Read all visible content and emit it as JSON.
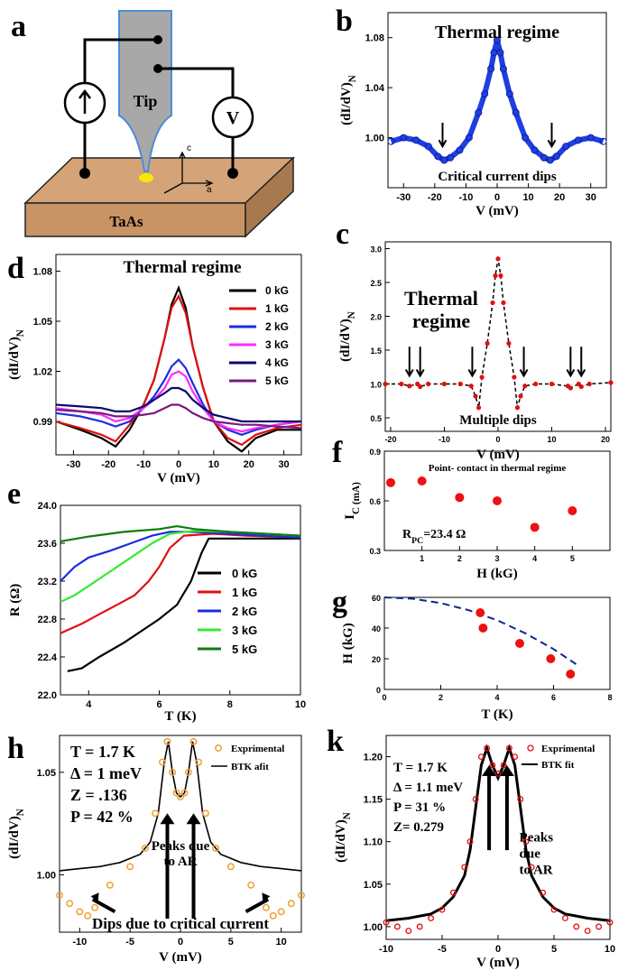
{
  "panel_labels": {
    "a": "a",
    "b": "b",
    "c": "c",
    "d": "d",
    "e": "e",
    "f": "f",
    "g": "g",
    "h": "h",
    "k": "k"
  },
  "schematic": {
    "tip_label": "Tip",
    "meter_label": "V",
    "substrate_label": "TaAs",
    "axis_c": "c",
    "axis_a": "a"
  },
  "colors": {
    "b": "#1f3fe0",
    "c": "#e01010",
    "fit": "#0a2a8a"
  },
  "chart_data": [
    {
      "id": "b",
      "type": "line",
      "title": "Thermal regime",
      "annotation": "Critical current dips",
      "xlabel": "V (mV)",
      "ylabel": "(dI/dV)_N",
      "xlim": [
        -35,
        35
      ],
      "ylim": [
        0.96,
        1.1
      ],
      "xticks": [
        -30,
        -20,
        -10,
        0,
        10,
        20,
        30
      ],
      "yticks": [
        1.0,
        1.04,
        1.08
      ],
      "ytick_labels": [
        "1.00",
        "1.04",
        "1.08"
      ],
      "dip_arrows_x": [
        -17.5,
        17.5
      ],
      "x": [
        -34,
        -30,
        -26,
        -22,
        -19,
        -17,
        -15,
        -12,
        -9,
        -6,
        -4,
        -2,
        -1,
        0,
        1,
        2,
        4,
        6,
        9,
        12,
        15,
        17,
        19,
        22,
        26,
        30,
        34
      ],
      "y": [
        0.997,
        1.0,
        0.998,
        0.993,
        0.985,
        0.982,
        0.984,
        0.99,
        1.0,
        1.02,
        1.035,
        1.055,
        1.068,
        1.078,
        1.068,
        1.055,
        1.035,
        1.02,
        1.0,
        0.99,
        0.984,
        0.982,
        0.985,
        0.993,
        0.998,
        1.0,
        0.997
      ]
    },
    {
      "id": "c",
      "type": "line",
      "title_line1": "Thermal",
      "title_line2": "regime",
      "annotation": "Multiple dips",
      "xlabel": "V (mV)",
      "ylabel": "(dI/dV)_N",
      "xlim": [
        -21,
        21
      ],
      "ylim": [
        0.3,
        3.1
      ],
      "xticks": [
        -20,
        -10,
        0,
        10,
        20
      ],
      "yticks": [
        0.5,
        1.0,
        1.5,
        2.0,
        2.5,
        3.0
      ],
      "ytick_labels": [
        "0.5",
        "1.0",
        "1.5",
        "2.0",
        "2.5",
        "3.0"
      ],
      "dip_arrows_x": [
        -16.5,
        -14.5,
        -4.8,
        4.8,
        13.5,
        15.5
      ],
      "x": [
        -21,
        -18,
        -16.5,
        -15,
        -14.5,
        -13,
        -10,
        -7,
        -5,
        -4.2,
        -3.6,
        -3,
        -2,
        -1,
        -0.5,
        0,
        0.5,
        1,
        2,
        3,
        3.6,
        4.2,
        5,
        7,
        10,
        13,
        13.5,
        15,
        15.5,
        17,
        21
      ],
      "y": [
        1.0,
        1.0,
        0.97,
        1.0,
        0.96,
        1.0,
        1.0,
        1.0,
        0.97,
        0.82,
        0.65,
        1.1,
        1.6,
        2.2,
        2.6,
        2.85,
        2.6,
        2.2,
        1.6,
        1.1,
        0.65,
        0.82,
        0.97,
        1.0,
        1.0,
        0.97,
        0.94,
        1.0,
        0.96,
        1.0,
        1.02
      ]
    },
    {
      "id": "d",
      "type": "line",
      "title": "Thermal regime",
      "xlabel": "V (mV)",
      "ylabel": "(dI/dV)_N",
      "xlim": [
        -35,
        35
      ],
      "ylim": [
        0.97,
        1.09
      ],
      "xticks": [
        -30,
        -20,
        -10,
        0,
        10,
        20,
        30
      ],
      "yticks": [
        0.99,
        1.02,
        1.05,
        1.08
      ],
      "ytick_labels": [
        "0.99",
        "1.02",
        "1.05",
        "1.08"
      ],
      "x": [
        -35,
        -28,
        -22,
        -18,
        -14,
        -10,
        -7,
        -4,
        -2,
        0,
        2,
        4,
        7,
        10,
        14,
        18,
        22,
        28,
        35
      ],
      "series": [
        {
          "name": "0 kG",
          "color": "#000000",
          "values": [
            0.99,
            0.985,
            0.98,
            0.975,
            0.985,
            1.0,
            1.015,
            1.04,
            1.06,
            1.07,
            1.058,
            1.035,
            1.01,
            0.99,
            0.978,
            0.972,
            0.98,
            0.985,
            0.985
          ]
        },
        {
          "name": "1 kG",
          "color": "#e01010",
          "values": [
            0.99,
            0.986,
            0.982,
            0.978,
            0.988,
            1.0,
            1.015,
            1.04,
            1.058,
            1.065,
            1.055,
            1.035,
            1.01,
            0.99,
            0.98,
            0.976,
            0.982,
            0.986,
            0.988
          ]
        },
        {
          "name": "2 kG",
          "color": "#1a2de0",
          "values": [
            0.995,
            0.993,
            0.99,
            0.987,
            0.99,
            0.998,
            1.005,
            1.015,
            1.023,
            1.027,
            1.022,
            1.013,
            1.0,
            0.99,
            0.985,
            0.982,
            0.985,
            0.988,
            0.99
          ]
        },
        {
          "name": "3 kG",
          "color": "#ff2bff",
          "values": [
            0.998,
            0.996,
            0.994,
            0.99,
            0.992,
            0.998,
            1.003,
            1.01,
            1.018,
            1.02,
            1.017,
            1.008,
            0.998,
            0.99,
            0.986,
            0.984,
            0.986,
            0.988,
            0.99
          ]
        },
        {
          "name": "4 kG",
          "color": "#0a0a6e",
          "values": [
            1.0,
            0.999,
            0.998,
            0.996,
            0.996,
            0.999,
            1.003,
            1.007,
            1.01,
            1.01,
            1.008,
            1.003,
            0.998,
            0.994,
            0.992,
            0.99,
            0.99,
            0.99,
            0.99
          ]
        },
        {
          "name": "5 kG",
          "color": "#7a1a7a",
          "values": [
            0.997,
            0.996,
            0.995,
            0.993,
            0.993,
            0.994,
            0.995,
            0.998,
            1.0,
            1.0,
            0.998,
            0.995,
            0.992,
            0.99,
            0.989,
            0.988,
            0.988,
            0.987,
            0.986
          ]
        }
      ]
    },
    {
      "id": "e",
      "type": "line",
      "xlabel": "T (K)",
      "ylabel": "R (Ω)",
      "xlim": [
        3.2,
        10
      ],
      "ylim": [
        22.0,
        24.0
      ],
      "xticks": [
        4,
        6,
        8,
        10
      ],
      "yticks": [
        22.0,
        22.4,
        22.8,
        23.2,
        23.6,
        24.0
      ],
      "ytick_labels": [
        "22.0",
        "22.4",
        "22.8",
        "23.2",
        "23.6",
        "24.0"
      ],
      "series": [
        {
          "name": "0 kG",
          "color": "#000000",
          "x": [
            3.4,
            3.8,
            4.3,
            5.0,
            5.6,
            6.0,
            6.5,
            6.9,
            7.2,
            7.4,
            8.0,
            9.0,
            10.0
          ],
          "values": [
            22.25,
            22.28,
            22.4,
            22.55,
            22.7,
            22.8,
            22.95,
            23.2,
            23.5,
            23.65,
            23.65,
            23.65,
            23.65
          ]
        },
        {
          "name": "1 kG",
          "color": "#e01010",
          "x": [
            3.2,
            3.8,
            4.3,
            4.8,
            5.3,
            5.7,
            6.0,
            6.3,
            6.7,
            7.5,
            8.5,
            10.0
          ],
          "values": [
            22.65,
            22.75,
            22.85,
            22.95,
            23.05,
            23.2,
            23.35,
            23.55,
            23.68,
            23.7,
            23.68,
            23.66
          ]
        },
        {
          "name": "2 kG",
          "color": "#1a2de0",
          "x": [
            3.2,
            3.6,
            4.0,
            4.6,
            5.2,
            5.8,
            6.3,
            7.0,
            8.0,
            9.0,
            10.0
          ],
          "values": [
            23.2,
            23.35,
            23.45,
            23.52,
            23.6,
            23.68,
            23.72,
            23.72,
            23.7,
            23.68,
            23.66
          ]
        },
        {
          "name": "3 kG",
          "color": "#34ea34",
          "x": [
            3.2,
            3.6,
            4.0,
            4.6,
            5.2,
            5.8,
            6.3,
            7.0,
            8.0,
            9.0,
            10.0
          ],
          "values": [
            22.98,
            23.05,
            23.15,
            23.3,
            23.45,
            23.6,
            23.7,
            23.73,
            23.72,
            23.7,
            23.68
          ]
        },
        {
          "name": "5 kG",
          "color": "#0f7a0f",
          "x": [
            3.2,
            4.0,
            5.0,
            6.0,
            6.5,
            7.0,
            8.0,
            9.0,
            10.0
          ],
          "values": [
            23.62,
            23.67,
            23.72,
            23.75,
            23.78,
            23.75,
            23.72,
            23.7,
            23.68
          ]
        }
      ]
    },
    {
      "id": "f",
      "type": "scatter",
      "title": "Point- contact in thermal regime",
      "annotation": "R_PC=23.4 Ω",
      "xlabel": "H (kG)",
      "ylabel": "I_C (mA)",
      "xlim": [
        0,
        6
      ],
      "ylim": [
        0.3,
        0.9
      ],
      "xticks": [
        1,
        2,
        3,
        4,
        5
      ],
      "yticks": [
        0.3,
        0.6,
        0.9
      ],
      "ytick_labels": [
        "0.3",
        "0.6",
        "0.9"
      ],
      "x": [
        0,
        1,
        2,
        3,
        4,
        5
      ],
      "values": [
        0.71,
        0.72,
        0.62,
        0.6,
        0.44,
        0.54
      ],
      "color": "#ee1111"
    },
    {
      "id": "g",
      "type": "scatter",
      "xlabel": "T (K)",
      "ylabel": "H (kG)",
      "xlim": [
        0,
        8
      ],
      "ylim": [
        0,
        60
      ],
      "xticks": [
        0,
        2,
        4,
        6,
        8
      ],
      "yticks": [
        0,
        20,
        40,
        60
      ],
      "ytick_labels": [
        "0",
        "20",
        "40",
        "60"
      ],
      "x": [
        3.4,
        3.5,
        4.8,
        5.9,
        6.6
      ],
      "values": [
        50,
        40,
        30,
        20,
        10
      ],
      "color": "#ee1111",
      "fit": {
        "style": "dashed",
        "color": "#0a2a8a",
        "x": [
          0,
          1,
          2,
          3,
          4,
          5,
          6,
          6.8
        ],
        "values": [
          60,
          59.1,
          56.3,
          51.6,
          45.1,
          36.6,
          26.3,
          16.5
        ]
      }
    },
    {
      "id": "h",
      "type": "line",
      "xlabel": "V (mV)",
      "ylabel": "(dI/dV)_N",
      "xlim": [
        -12,
        12
      ],
      "ylim": [
        0.972,
        1.068
      ],
      "xticks": [
        -10,
        -5,
        0,
        5,
        10
      ],
      "yticks": [
        1.0,
        1.05
      ],
      "ytick_labels": [
        "1.00",
        "1.05"
      ],
      "legend": [
        "Exprimental",
        "BTK afit"
      ],
      "params": [
        "T = 1.7 K",
        "Δ = 1 meV",
        "Z = .136",
        "P = 42 %"
      ],
      "annotation_peaks": [
        "Peaks due",
        "to AR"
      ],
      "annotation_dips": "Dips due to critical current",
      "series": [
        {
          "name": "Exprimental",
          "color": "#f0a030",
          "x": [
            -12,
            -11,
            -10,
            -9.2,
            -8.5,
            -7,
            -5,
            -3.5,
            -2.5,
            -1.8,
            -1.3,
            -0.8,
            -0.4,
            0,
            0.4,
            0.8,
            1.3,
            1.8,
            2.5,
            3.5,
            5,
            7,
            8.5,
            9.2,
            10,
            11,
            12
          ],
          "values": [
            0.99,
            0.986,
            0.982,
            0.98,
            0.984,
            0.995,
            1.004,
            1.013,
            1.03,
            1.055,
            1.065,
            1.05,
            1.04,
            1.038,
            1.04,
            1.05,
            1.065,
            1.055,
            1.03,
            1.013,
            1.004,
            0.995,
            0.984,
            0.98,
            0.982,
            0.986,
            0.99
          ]
        },
        {
          "name": "BTK afit",
          "color": "#000000",
          "x": [
            -12,
            -10,
            -8,
            -6,
            -4,
            -3,
            -2.2,
            -1.6,
            -1.2,
            -0.8,
            -0.4,
            0,
            0.4,
            0.8,
            1.2,
            1.6,
            2.2,
            3,
            4,
            6,
            8,
            10,
            12
          ],
          "values": [
            1.002,
            1.003,
            1.004,
            1.006,
            1.01,
            1.016,
            1.03,
            1.055,
            1.065,
            1.05,
            1.04,
            1.038,
            1.04,
            1.05,
            1.065,
            1.055,
            1.03,
            1.016,
            1.01,
            1.006,
            1.004,
            1.003,
            1.002
          ]
        }
      ]
    },
    {
      "id": "k",
      "type": "line",
      "xlabel": "V (mV)",
      "ylabel": "(dI/dV)_N",
      "xlim": [
        -10,
        10
      ],
      "ylim": [
        0.985,
        1.225
      ],
      "xticks": [
        -10,
        -5,
        0,
        5,
        10
      ],
      "yticks": [
        1.0,
        1.05,
        1.1,
        1.15,
        1.2
      ],
      "ytick_labels": [
        "1.00",
        "1.05",
        "1.10",
        "1.15",
        "1.20"
      ],
      "legend": [
        "Exprimental",
        "BTK fit"
      ],
      "params": [
        "T = 1.7 K",
        "Δ = 1.1 meV",
        "P = 31 %",
        "Z=  0.279"
      ],
      "annotation_peaks": [
        "Peaks",
        "due",
        "to AR"
      ],
      "series": [
        {
          "name": "Exprimental",
          "color": "#e01010",
          "x": [
            -10,
            -9,
            -8,
            -7,
            -6,
            -5,
            -4,
            -3,
            -2.5,
            -2,
            -1.5,
            -1,
            -0.5,
            0,
            0.5,
            1,
            1.5,
            2,
            2.5,
            3,
            4,
            5,
            6,
            7,
            8,
            9,
            10
          ],
          "values": [
            1.005,
            1.0,
            0.995,
            1.0,
            1.01,
            1.02,
            1.04,
            1.07,
            1.1,
            1.15,
            1.2,
            1.21,
            1.19,
            1.18,
            1.19,
            1.21,
            1.2,
            1.15,
            1.1,
            1.07,
            1.04,
            1.02,
            1.01,
            1.0,
            0.995,
            1.0,
            1.005
          ]
        },
        {
          "name": "BTK fit",
          "color": "#000000",
          "x": [
            -10,
            -8,
            -6,
            -5,
            -4,
            -3,
            -2.5,
            -2,
            -1.5,
            -1,
            -0.5,
            0,
            0.5,
            1,
            1.5,
            2,
            2.5,
            3,
            4,
            5,
            6,
            8,
            10
          ],
          "values": [
            1.007,
            1.01,
            1.015,
            1.022,
            1.035,
            1.06,
            1.09,
            1.14,
            1.19,
            1.21,
            1.19,
            1.175,
            1.19,
            1.21,
            1.19,
            1.14,
            1.09,
            1.06,
            1.035,
            1.022,
            1.015,
            1.01,
            1.007
          ]
        }
      ]
    }
  ]
}
